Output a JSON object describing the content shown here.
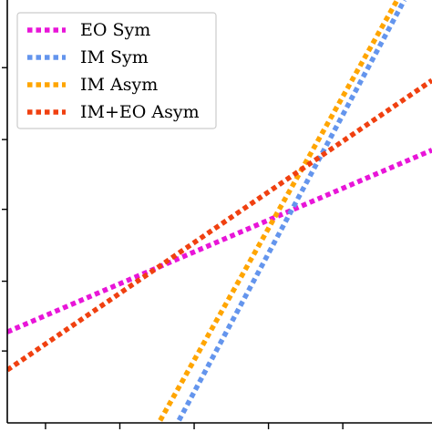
{
  "chart_data": {
    "type": "line",
    "title": "",
    "xlabel": "",
    "ylabel": "",
    "grid": false,
    "legend_position": "top-left",
    "xlim": [
      0,
      1
    ],
    "ylim": [
      0,
      1
    ],
    "series": [
      {
        "name": "EO Sym",
        "color": "#e815d8",
        "style": "dotted",
        "x": [
          0.0,
          1.0
        ],
        "y": [
          0.215,
          0.645
        ]
      },
      {
        "name": "IM Sym",
        "color": "#6495ed",
        "style": "dotted",
        "x": [
          0.385,
          0.935
        ],
        "y": [
          -0.03,
          1.0
        ]
      },
      {
        "name": "IM Asym",
        "color": "#ffa500",
        "style": "dotted",
        "x": [
          0.34,
          0.935
        ],
        "y": [
          -0.03,
          1.03
        ]
      },
      {
        "name": "IM+EO Asym",
        "color": "#f04010",
        "style": "dotted",
        "x": [
          0.0,
          1.0
        ],
        "y": [
          0.125,
          0.81
        ]
      }
    ]
  }
}
